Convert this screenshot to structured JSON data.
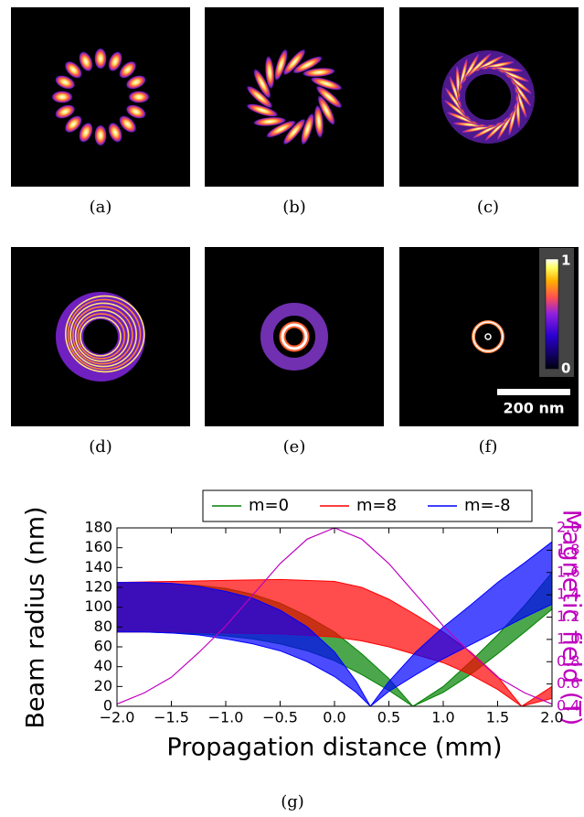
{
  "panels": [
    {
      "caption": "(a)"
    },
    {
      "caption": "(b)"
    },
    {
      "caption": "(c)"
    },
    {
      "caption": "(d)"
    },
    {
      "caption": "(e)"
    },
    {
      "caption": "(f)"
    }
  ],
  "colorbar": {
    "ticks": [
      1,
      0
    ]
  },
  "scale_bar": "200 nm",
  "chart_data": {
    "type": "band",
    "caption": "(g)",
    "xlabel": "Propagation distance (mm)",
    "ylabel": "Beam radius (nm)",
    "y2label": "Magnetic field (T)",
    "xlim": [
      -2,
      2
    ],
    "xticks": [
      {
        "value": -2,
        "label": "−2.0"
      },
      {
        "value": -1.5,
        "label": "−1.5"
      },
      {
        "value": -1,
        "label": "−1.0"
      },
      {
        "value": -0.5,
        "label": "−0.5"
      },
      {
        "value": 0,
        "label": "0.0"
      },
      0.5,
      {
        "value": 1,
        "label": "1.0"
      },
      1.5,
      {
        "value": 2,
        "label": "2.0"
      }
    ],
    "ylim": [
      0,
      180
    ],
    "yticks": [
      0,
      20,
      40,
      60,
      80,
      100,
      120,
      140,
      160,
      180
    ],
    "y2lim": [
      0.4,
      2.0
    ],
    "y2ticks": [
      0.4,
      0.6,
      0.8,
      {
        "value": 1,
        "label": "1.0"
      },
      1.2,
      1.4,
      1.6,
      1.8,
      {
        "value": 2,
        "label": "2.0"
      }
    ],
    "series": [
      {
        "name": "m=0",
        "color": "#008000",
        "x": [
          -2,
          -1.75,
          -1.5,
          -1.25,
          -1,
          -0.75,
          -0.5,
          -0.25,
          0,
          0.25,
          0.5,
          0.72,
          1,
          1.25,
          1.5,
          1.75,
          2
        ],
        "upper": [
          125,
          125,
          124,
          122,
          119,
          113,
          104,
          91,
          75,
          53,
          28,
          0,
          20,
          45,
          72,
          102,
          135
        ],
        "lower": [
          75,
          75,
          74,
          73,
          71,
          68,
          63,
          56,
          46,
          32,
          16,
          0,
          14,
          32,
          53,
          75,
          98
        ]
      },
      {
        "name": "m=8",
        "color": "#ff0000",
        "x": [
          -2,
          -1.5,
          -1,
          -0.5,
          0,
          0.25,
          0.5,
          0.75,
          1,
          1.25,
          1.5,
          1.72,
          2
        ],
        "upper": [
          125,
          126,
          127,
          128,
          126,
          120,
          108,
          92,
          75,
          55,
          30,
          0,
          20
        ],
        "lower": [
          75,
          75,
          74,
          73,
          70,
          66,
          60,
          52,
          44,
          32,
          17,
          0,
          8
        ]
      },
      {
        "name": "m=-8",
        "color": "#0000ff",
        "x": [
          -2,
          -1.75,
          -1.5,
          -1.25,
          -1,
          -0.75,
          -0.5,
          -0.25,
          0,
          0.2,
          0.33,
          0.5,
          0.75,
          1,
          1.25,
          1.5,
          1.75,
          2
        ],
        "upper": [
          125,
          125,
          124,
          121,
          116,
          109,
          97,
          80,
          55,
          25,
          0,
          25,
          55,
          80,
          102,
          125,
          145,
          166
        ],
        "lower": [
          75,
          75,
          74,
          72,
          68,
          63,
          56,
          45,
          30,
          14,
          0,
          15,
          32,
          48,
          62,
          76,
          90,
          103
        ]
      }
    ],
    "field": {
      "color": "#bf00bf",
      "axis": "y2",
      "x": [
        -2,
        -1.75,
        -1.5,
        -1.25,
        -1,
        -0.75,
        -0.5,
        -0.25,
        0,
        0.25,
        0.5,
        0.75,
        1,
        1.25,
        1.5,
        1.75,
        2
      ],
      "values": [
        0.42,
        0.52,
        0.66,
        0.88,
        1.12,
        1.4,
        1.68,
        1.9,
        2.0,
        1.9,
        1.68,
        1.4,
        1.12,
        0.88,
        0.66,
        0.52,
        0.42
      ]
    }
  }
}
